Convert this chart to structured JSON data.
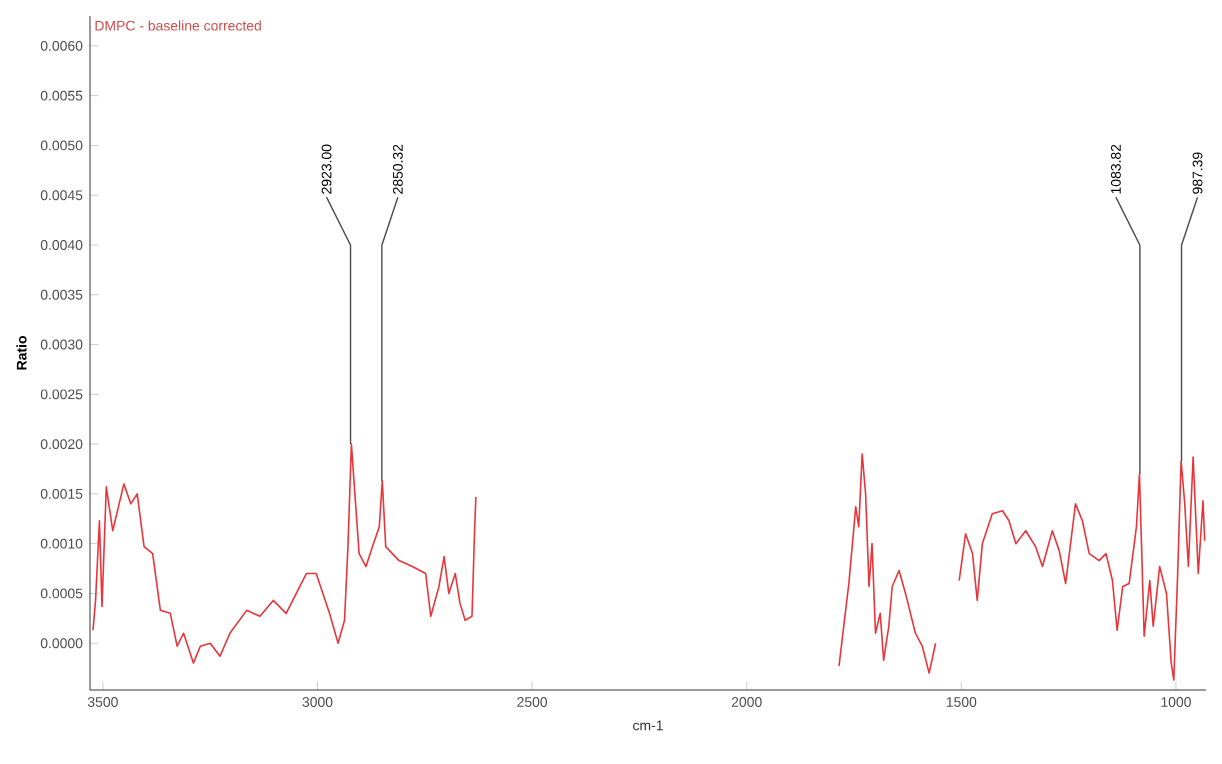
{
  "chart_data": {
    "type": "line",
    "title": "DMPC - baseline corrected",
    "xlabel": "cm-1",
    "ylabel": "Ratio",
    "xlim": [
      3530,
      930
    ],
    "ylim": [
      -0.00047,
      0.0063
    ],
    "xticks": [
      3500,
      3000,
      2500,
      2000,
      1500,
      1000
    ],
    "yticks": [
      {
        "value": 0,
        "label": "0.0000"
      },
      {
        "value": 0.0005,
        "label": "0.0005"
      },
      {
        "value": 0.001,
        "label": "0.0010"
      },
      {
        "value": 0.0015,
        "label": "0.0015"
      },
      {
        "value": 0.002,
        "label": "0.0020"
      },
      {
        "value": 0.0025,
        "label": "0.0025"
      },
      {
        "value": 0.003,
        "label": "0.0030"
      },
      {
        "value": 0.0035,
        "label": "0.0035"
      },
      {
        "value": 0.004,
        "label": "0.0040"
      },
      {
        "value": 0.0045,
        "label": "0.0045"
      },
      {
        "value": 0.005,
        "label": "0.0050"
      },
      {
        "value": 0.0055,
        "label": "0.0055"
      },
      {
        "value": 0.006,
        "label": "0.0060"
      }
    ],
    "grid": false,
    "marker": "none",
    "line_style": "solid",
    "series": [
      {
        "color": "#e8353a",
        "x": [
          3523,
          3517,
          3508,
          3502,
          3492,
          3477,
          3451,
          3435,
          3420,
          3404,
          3384,
          3366,
          3343,
          3327,
          3312,
          3289,
          3273,
          3250,
          3227,
          3204,
          3165,
          3134,
          3103,
          3073,
          3026,
          3003,
          2972,
          2952,
          2937,
          2929,
          2921,
          2914,
          2903,
          2887,
          2872,
          2856,
          2849,
          2841,
          2810,
          2779,
          2748,
          2736,
          2717,
          2705,
          2694,
          2679,
          2668,
          2656,
          2640,
          2634,
          2631
        ],
        "values": [
          0.00013,
          0.00043,
          0.00123,
          0.00037,
          0.00157,
          0.00113,
          0.0016,
          0.0014,
          0.0015,
          0.00097,
          0.0009,
          0.00033,
          0.0003,
          -3e-05,
          0.0001,
          -0.0002,
          -3e-05,
          0,
          -0.00013,
          0.0001,
          0.00033,
          0.00027,
          0.00043,
          0.0003,
          0.0007,
          0.0007,
          0.0003,
          0,
          0.00023,
          0.00097,
          0.002,
          0.00157,
          0.0009,
          0.00077,
          0.00097,
          0.00117,
          0.00163,
          0.00097,
          0.00083,
          0.00077,
          0.0007,
          0.00027,
          0.00057,
          0.00087,
          0.0005,
          0.0007,
          0.0004,
          0.00023,
          0.00027,
          0.00113,
          0.00147
        ]
      },
      {
        "color": "#e8353a",
        "x": [
          1785,
          1774,
          1762,
          1746,
          1739,
          1731,
          1723,
          1715,
          1708,
          1700,
          1689,
          1681,
          1669,
          1661,
          1645,
          1630,
          1607,
          1591,
          1575,
          1560,
          1552,
          1505,
          1490,
          1474,
          1463,
          1451,
          1428,
          1404,
          1389,
          1373,
          1350,
          1327,
          1311,
          1288,
          1272,
          1257,
          1234,
          1218,
          1202,
          1179,
          1163,
          1148,
          1137,
          1124,
          1109,
          1092,
          1085,
          1074,
          1061,
          1053,
          1038,
          1022,
          1011,
          1005,
          996,
          988,
          980,
          971,
          960,
          948,
          937,
          933
        ],
        "values": [
          -0.00023,
          0.00017,
          0.0006,
          0.00137,
          0.00117,
          0.0019,
          0.0015,
          0.00057,
          0.001,
          0.0001,
          0.0003,
          -0.00017,
          0.00017,
          0.00057,
          0.00073,
          0.0005,
          0.0001,
          -3e-05,
          -0.0003,
          0,
          null,
          0.00063,
          0.0011,
          0.0009,
          0.00043,
          0.001,
          0.0013,
          0.00133,
          0.00123,
          0.001,
          0.00113,
          0.00097,
          0.00077,
          0.00113,
          0.00093,
          0.0006,
          0.0014,
          0.00123,
          0.0009,
          0.00083,
          0.0009,
          0.00063,
          0.00013,
          0.00057,
          0.0006,
          0.00117,
          0.0017,
          7e-05,
          0.00063,
          0.00017,
          0.00077,
          0.0005,
          -0.0002,
          -0.00037,
          0.0007,
          0.00183,
          0.00143,
          0.00077,
          0.00187,
          0.0007,
          0.00143,
          0.00103
        ]
      }
    ],
    "annotations": [
      {
        "text": "2923.00",
        "x": 2923,
        "y": 0.002
      },
      {
        "text": "2850.32",
        "x": 2850,
        "y": 0.00163
      },
      {
        "text": "1083.82",
        "x": 1084,
        "y": 0.0017
      },
      {
        "text": "987.39",
        "x": 987,
        "y": 0.00183
      }
    ]
  }
}
